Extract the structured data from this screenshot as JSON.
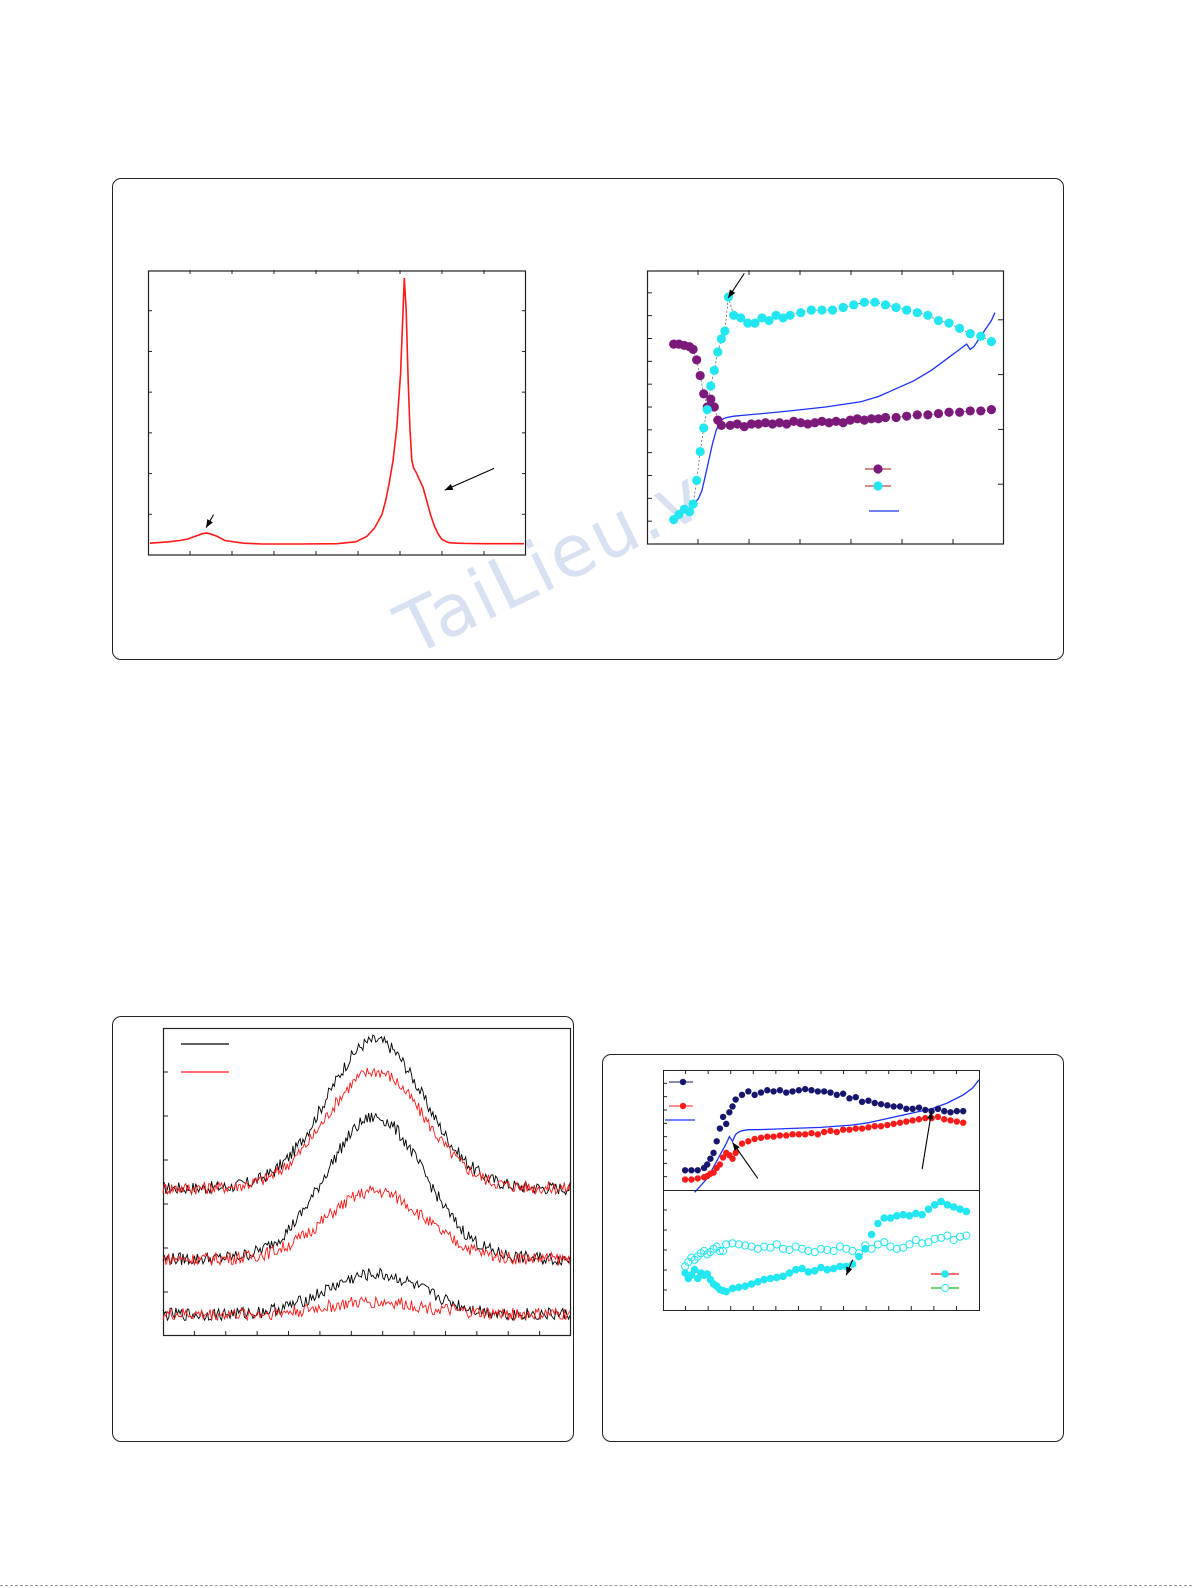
{
  "watermark": "TaiLieu.v",
  "colors": {
    "red": "#ff1a1a",
    "purple": "#7b1a7b",
    "cyan": "#22e6f0",
    "blue": "#1a33ff",
    "navy": "#16166e",
    "black": "#000000",
    "frame": "#222222"
  },
  "chart_data": [
    {
      "type": "line",
      "panel": "top-left",
      "xlim": [
        0,
        100
      ],
      "ylim": [
        0,
        100
      ],
      "series": [
        {
          "color": "#ff1a1a",
          "x": [
            0,
            5,
            8,
            10,
            12,
            14,
            15,
            16,
            18,
            20,
            25,
            30,
            40,
            50,
            55,
            58,
            60,
            62,
            63,
            64,
            65,
            66,
            67,
            68,
            68.5,
            69,
            69.5,
            70,
            70.5,
            71,
            72,
            73,
            74,
            75,
            76,
            77,
            78,
            79,
            80,
            82,
            85,
            90,
            95,
            100
          ],
          "y": [
            2.5,
            3,
            3.5,
            4,
            5,
            6,
            6.2,
            6,
            5,
            3.5,
            2.5,
            2.2,
            2.2,
            2.3,
            3,
            5,
            8,
            13,
            18,
            25,
            33,
            45,
            65,
            100,
            88,
            63,
            45,
            33,
            30,
            29,
            26,
            23,
            18,
            13,
            9,
            6,
            4,
            3.2,
            2.7,
            2.5,
            2.4,
            2.3,
            2.3,
            2.3
          ]
        }
      ],
      "annotations": [
        {
          "type": "arrow",
          "target_x": 15,
          "target_y": 6
        },
        {
          "type": "arrow",
          "target_x": 78,
          "target_y": 22
        }
      ]
    },
    {
      "type": "scatter",
      "panel": "top-right",
      "xlim": [
        0,
        100
      ],
      "ylim": [
        0,
        100
      ],
      "series": [
        {
          "color": "#7b1a7b",
          "marker": "circle",
          "x": [
            7,
            8.5,
            10,
            11.5,
            12.5,
            13.5,
            14.5,
            15.5,
            16.5,
            17.5,
            18.5,
            19.5,
            20.5,
            23,
            25,
            27,
            29,
            31,
            33,
            35,
            37,
            39,
            41,
            43,
            45,
            47,
            49,
            51,
            53,
            55,
            57,
            59,
            61,
            63,
            65,
            67,
            70,
            73,
            76,
            79,
            82,
            85,
            88,
            91,
            94,
            97
          ],
          "y": [
            74,
            74,
            73.5,
            73,
            72,
            68,
            62,
            55,
            50,
            53,
            50,
            45,
            43,
            43,
            43.5,
            42.5,
            43.5,
            43.5,
            44,
            43.5,
            44,
            43.5,
            44.5,
            44,
            43.5,
            44,
            44.5,
            44,
            44.5,
            44,
            45,
            45.5,
            45,
            45.5,
            45.5,
            46,
            46,
            46.5,
            47,
            47,
            47.5,
            48,
            48,
            48.5,
            48.5,
            49
          ]
        },
        {
          "color": "#22e6f0",
          "marker": "circle",
          "x": [
            7,
            8.5,
            10,
            11.5,
            12.5,
            13.5,
            14.5,
            15.5,
            16.5,
            17.5,
            18.5,
            19.5,
            20.5,
            21.5,
            22.5,
            24,
            26,
            28,
            30,
            32,
            34,
            36,
            38,
            40,
            43,
            46,
            49,
            52,
            55,
            58,
            61,
            64,
            67,
            70,
            73,
            76,
            79,
            82,
            85,
            88,
            91,
            94,
            97
          ],
          "y": [
            7,
            9,
            11,
            10,
            13,
            22,
            33,
            42,
            49,
            58,
            64,
            71,
            76,
            79,
            92,
            85,
            84,
            82,
            82,
            84,
            83,
            85,
            84,
            85,
            86,
            87,
            87,
            87,
            88,
            89,
            90,
            90,
            89,
            88,
            87,
            86,
            85,
            83,
            82,
            80,
            78,
            77,
            75
          ]
        }
      ],
      "lines": [
        {
          "color": "#1a33ff",
          "x": [
            8,
            10,
            12,
            14,
            15,
            16,
            17,
            18,
            19,
            20,
            21,
            22,
            24,
            28,
            32,
            40,
            50,
            60,
            65,
            70,
            75,
            80,
            85,
            88,
            90,
            91,
            92,
            93,
            94,
            95,
            96,
            97,
            98
          ],
          "y": [
            9,
            10,
            12,
            15,
            18,
            24,
            30,
            36,
            41,
            44,
            45.5,
            46,
            46.5,
            47,
            47.5,
            48.5,
            50,
            52,
            54,
            57,
            60,
            64,
            69,
            72,
            74,
            72,
            73,
            75,
            77,
            79,
            81,
            83,
            86
          ]
        }
      ],
      "legend": [
        {
          "marker": "purple-dot"
        },
        {
          "marker": "cyan-dot"
        },
        {
          "marker": "blue-line"
        }
      ],
      "annotations": [
        {
          "type": "arrow",
          "target_x": 21,
          "target_y": 92
        }
      ]
    },
    {
      "type": "line",
      "panel": "bottom-left",
      "xlim": [
        0,
        100
      ],
      "ylim": [
        0,
        100
      ],
      "center": 52,
      "width": 12,
      "series": [
        {
          "color": "#000000",
          "base": 48,
          "height": 48
        },
        {
          "color": "#ff1a1a",
          "base": 48,
          "height": 38
        },
        {
          "color": "#000000",
          "base": 25,
          "height": 46
        },
        {
          "color": "#ff1a1a",
          "base": 25,
          "height": 22
        },
        {
          "color": "#000000",
          "base": 7,
          "height": 13
        },
        {
          "color": "#ff1a1a",
          "base": 7,
          "height": 4
        }
      ],
      "legend": [
        {
          "color": "#000000"
        },
        {
          "color": "#ff1a1a"
        }
      ]
    },
    {
      "type": "scatter",
      "panel": "bottom-right-upper",
      "xlim": [
        0,
        100
      ],
      "ylim": [
        0,
        100
      ],
      "series": [
        {
          "color": "#16166e",
          "marker": "dot",
          "x": [
            7,
            9,
            11,
            13,
            14,
            15,
            16,
            17,
            18,
            19,
            20,
            21,
            22,
            23,
            25,
            27,
            29,
            31,
            33,
            35,
            37,
            39,
            41,
            43,
            45,
            47,
            49,
            51,
            53,
            55,
            57,
            59,
            61,
            63,
            65,
            67,
            69,
            71,
            73,
            75,
            77,
            79,
            81,
            83,
            85,
            87,
            89,
            91,
            93,
            95
          ],
          "y": [
            17,
            17,
            17,
            19,
            22,
            27,
            32,
            42,
            53,
            63,
            57,
            67,
            72,
            78,
            82,
            85,
            82,
            84,
            86,
            85,
            86,
            84,
            85,
            86,
            87,
            86,
            85,
            85,
            84,
            82,
            83,
            79,
            80,
            76,
            77,
            75,
            74,
            73,
            72,
            72,
            70,
            70,
            71,
            69,
            68,
            70,
            68,
            67,
            68,
            68
          ]
        },
        {
          "color": "#ff1a1a",
          "marker": "dot",
          "x": [
            7,
            9,
            11,
            13,
            14,
            15,
            16,
            17,
            18,
            19,
            20,
            21,
            22,
            23,
            25,
            27,
            29,
            31,
            33,
            35,
            37,
            39,
            41,
            43,
            45,
            47,
            49,
            51,
            53,
            55,
            57,
            59,
            61,
            63,
            65,
            67,
            69,
            71,
            73,
            75,
            77,
            79,
            81,
            83,
            85,
            87,
            89,
            91,
            93,
            95
          ],
          "y": [
            9,
            9,
            10,
            11,
            12,
            14,
            15,
            19,
            22,
            28,
            32,
            30,
            27,
            32,
            40,
            42,
            44,
            45,
            46,
            46,
            47,
            47,
            48,
            48,
            48,
            49,
            48,
            50,
            51,
            50,
            52,
            52,
            53,
            53,
            54,
            55,
            55,
            56,
            57,
            58,
            59,
            60,
            61,
            62,
            62,
            63,
            61,
            60,
            59,
            58
          ]
        }
      ],
      "lines": [
        {
          "color": "#1a33ff",
          "x": [
            10,
            12,
            14,
            16,
            18,
            20,
            21,
            22,
            23,
            24,
            25,
            27,
            30,
            35,
            40,
            50,
            60,
            65,
            70,
            75,
            80,
            85,
            90,
            95,
            98,
            100
          ],
          "y": [
            -2,
            4,
            10,
            20,
            30,
            40,
            46,
            42,
            48,
            50,
            51,
            52,
            52,
            52.5,
            53,
            54,
            56,
            58,
            61,
            64,
            67,
            70,
            75,
            82,
            88,
            95
          ]
        }
      ],
      "legend": [
        {
          "marker": "navy-dot"
        },
        {
          "marker": "red-dot"
        },
        {
          "marker": "blue-line"
        }
      ],
      "annotations": [
        {
          "type": "arrow",
          "target_x": 22,
          "target_y": 41
        },
        {
          "type": "arrow",
          "target_x": 85,
          "target_y": 68
        }
      ]
    },
    {
      "type": "scatter",
      "panel": "bottom-right-lower",
      "xlim": [
        0,
        100
      ],
      "ylim": [
        0,
        100
      ],
      "series": [
        {
          "color": "#22e6f0",
          "marker": "filled-circle",
          "x": [
            7,
            8,
            9,
            10,
            11,
            12,
            13,
            14,
            15,
            16,
            17,
            18,
            19,
            20,
            22,
            24,
            26,
            28,
            30,
            32,
            34,
            36,
            38,
            40,
            42,
            44,
            46,
            48,
            50,
            52,
            54,
            56,
            58,
            60,
            62,
            64,
            66,
            68,
            70,
            72,
            74,
            76,
            78,
            80,
            82,
            84,
            86,
            88,
            90,
            92,
            94,
            96
          ],
          "y": [
            30,
            25,
            28,
            33,
            25,
            30,
            28,
            29,
            24,
            20,
            18,
            15,
            14,
            13,
            16,
            17,
            18,
            20,
            22,
            24,
            25,
            26,
            27,
            30,
            33,
            34,
            31,
            32,
            35,
            33,
            34,
            36,
            36,
            38,
            45,
            52,
            65,
            75,
            80,
            80,
            82,
            83,
            82,
            84,
            83,
            88,
            92,
            95,
            92,
            90,
            88,
            86
          ]
        },
        {
          "color": "#22e6f0",
          "marker": "open-circle",
          "x": [
            7,
            8,
            9,
            10,
            11,
            12,
            13,
            14,
            15,
            16,
            17,
            18,
            19,
            20,
            22,
            24,
            26,
            28,
            30,
            32,
            34,
            36,
            38,
            40,
            42,
            44,
            46,
            48,
            50,
            52,
            54,
            56,
            58,
            60,
            62,
            64,
            66,
            68,
            70,
            72,
            74,
            76,
            78,
            80,
            82,
            84,
            86,
            88,
            90,
            92,
            94,
            96
          ],
          "y": [
            36,
            40,
            44,
            42,
            45,
            48,
            50,
            47,
            49,
            52,
            54,
            50,
            50,
            56,
            57,
            56,
            55,
            54,
            52,
            54,
            53,
            56,
            52,
            51,
            54,
            52,
            50,
            49,
            52,
            51,
            50,
            54,
            52,
            50,
            48,
            55,
            52,
            56,
            58,
            54,
            52,
            53,
            56,
            60,
            57,
            58,
            61,
            62,
            64,
            60,
            63,
            64
          ]
        }
      ],
      "legend": [
        {
          "marker": "filled-circle"
        },
        {
          "marker": "open-circle"
        }
      ],
      "annotations": [
        {
          "type": "arrow",
          "target_x": 58,
          "target_y": 28
        }
      ]
    }
  ]
}
